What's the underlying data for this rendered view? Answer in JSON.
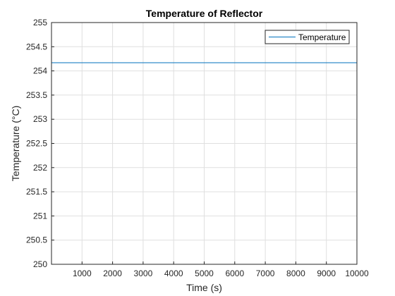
{
  "chart_data": {
    "type": "line",
    "title": "Temperature of Reflector",
    "xlabel": "Time (s)",
    "ylabel": "Temperature (°C)",
    "xlim": [
      0,
      10000
    ],
    "ylim": [
      250,
      255
    ],
    "xticks": [
      1000,
      2000,
      3000,
      4000,
      5000,
      6000,
      7000,
      8000,
      9000,
      10000
    ],
    "xtick_labels": [
      "1000",
      "2000",
      "3000",
      "4000",
      "5000",
      "6000",
      "7000",
      "8000",
      "9000",
      "10000"
    ],
    "yticks": [
      250,
      250.5,
      251,
      251.5,
      252,
      252.5,
      253,
      253.5,
      254,
      254.5,
      255
    ],
    "ytick_labels": [
      "250",
      "250.5",
      "251",
      "251.5",
      "252",
      "252.5",
      "253",
      "253.5",
      "254",
      "254.5",
      "255"
    ],
    "grid": true,
    "legend_position": "top-right",
    "series": [
      {
        "name": "Temperature",
        "color": "#0072BD",
        "x": [
          0,
          10000
        ],
        "y": [
          254.17,
          254.17
        ]
      }
    ]
  }
}
